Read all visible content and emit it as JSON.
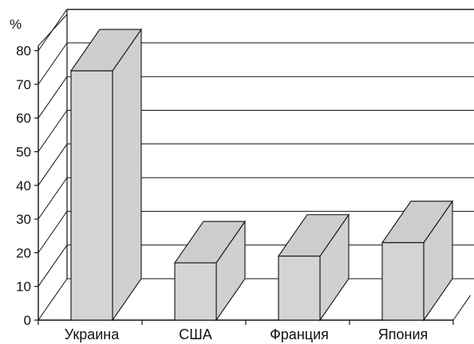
{
  "chart_data": {
    "type": "bar",
    "style": "3d",
    "title": "",
    "xlabel": "",
    "ylabel": "%",
    "categories": [
      "Украина",
      "США",
      "Франция",
      "Япония"
    ],
    "values": [
      74,
      17,
      19,
      23
    ],
    "ylim": [
      0,
      80
    ],
    "yticks": [
      "0",
      "10",
      "20",
      "30",
      "40",
      "50",
      "60",
      "70",
      "80"
    ],
    "grid": true,
    "legend": "none",
    "colors": {
      "bar_front": "#d4d4d4",
      "bar_top": "#cdcdcd",
      "bar_side": "#d0d0d0",
      "lines": "#111111"
    }
  }
}
